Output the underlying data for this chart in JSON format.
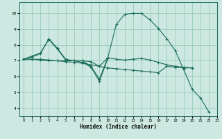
{
  "xlabel": "Humidex (Indice chaleur)",
  "bg_color": "#cce8e0",
  "grid_color": "#99ccbb",
  "line_color": "#1a6b5a",
  "xlim": [
    -0.5,
    23
  ],
  "ylim": [
    3.5,
    10.7
  ],
  "xticks": [
    0,
    1,
    2,
    3,
    4,
    5,
    6,
    7,
    8,
    9,
    10,
    11,
    12,
    13,
    14,
    15,
    16,
    17,
    18,
    19,
    20,
    21,
    22,
    23
  ],
  "yticks": [
    4,
    5,
    6,
    7,
    8,
    9,
    10
  ],
  "lines": [
    {
      "x": [
        0,
        1,
        2,
        3,
        4,
        5,
        6,
        7,
        8,
        9,
        10,
        11,
        12,
        13,
        14,
        15,
        16,
        17,
        18,
        19,
        20
      ],
      "y": [
        7.1,
        7.25,
        7.45,
        8.4,
        7.8,
        7.1,
        7.0,
        7.0,
        6.65,
        5.85,
        7.2,
        7.1,
        7.05,
        7.1,
        7.15,
        7.05,
        6.9,
        6.75,
        6.65,
        6.6,
        6.55
      ]
    },
    {
      "x": [
        0,
        1,
        2,
        3,
        4,
        5,
        6,
        7,
        8,
        9,
        10
      ],
      "y": [
        7.1,
        7.3,
        7.5,
        8.35,
        7.75,
        7.05,
        7.0,
        6.9,
        6.6,
        5.7,
        7.15
      ]
    },
    {
      "x": [
        0,
        1,
        2,
        3,
        4,
        5,
        6,
        7,
        8,
        9,
        10,
        11,
        12,
        13,
        14,
        15,
        16,
        17,
        18,
        19,
        20,
        21,
        22
      ],
      "y": [
        7.1,
        7.1,
        7.1,
        7.05,
        7.0,
        7.0,
        7.0,
        7.0,
        6.95,
        6.65,
        7.2,
        9.3,
        9.95,
        10.0,
        10.0,
        9.6,
        9.05,
        8.4,
        7.65,
        6.45,
        5.2,
        4.65,
        3.75
      ]
    },
    {
      "x": [
        0,
        1,
        2,
        3,
        4,
        5,
        6,
        7,
        8,
        9,
        10,
        11,
        12,
        13,
        14,
        15,
        16,
        17,
        18,
        19,
        20
      ],
      "y": [
        7.1,
        7.1,
        7.05,
        7.0,
        7.0,
        6.95,
        6.9,
        6.85,
        6.75,
        6.65,
        6.55,
        6.5,
        6.45,
        6.4,
        6.35,
        6.3,
        6.25,
        6.65,
        6.6,
        6.55,
        6.55
      ]
    }
  ]
}
